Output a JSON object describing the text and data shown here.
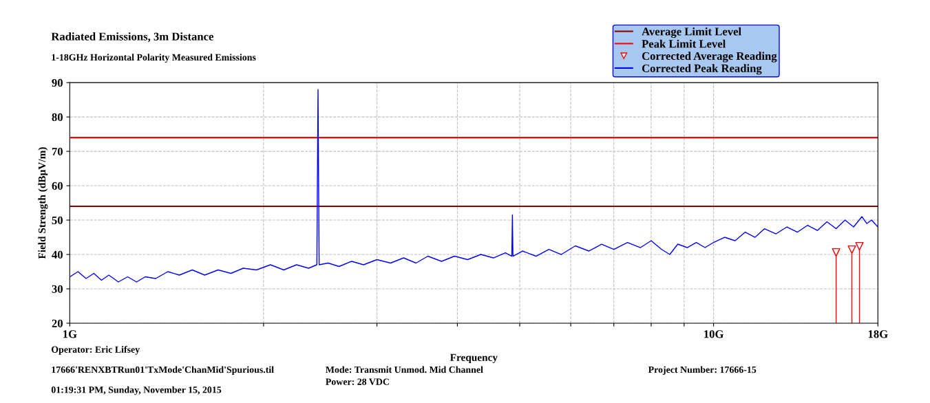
{
  "chart_data": {
    "type": "line",
    "title": "Radiated Emissions, 3m Distance",
    "subtitle": "1-18GHz Horizontal Polarity Measured Emissions",
    "xlabel": "Frequency",
    "ylabel": "Field Strength (dBµV/m)",
    "log": "x",
    "xlim": [
      1,
      18
    ],
    "xticks": [
      {
        "value": 1,
        "label": "1G"
      },
      {
        "value": 2,
        "label": null
      },
      {
        "value": 3,
        "label": null
      },
      {
        "value": 4,
        "label": null
      },
      {
        "value": 5,
        "label": null
      },
      {
        "value": 6,
        "label": null
      },
      {
        "value": 7,
        "label": null
      },
      {
        "value": 8,
        "label": null
      },
      {
        "value": 9,
        "label": null
      },
      {
        "value": 10,
        "label": "10G"
      },
      {
        "value": 18,
        "label": "18G"
      }
    ],
    "ylim": [
      20,
      90
    ],
    "yticks": [
      20,
      30,
      40,
      50,
      60,
      70,
      80,
      90
    ],
    "grid": true,
    "legend": "top right",
    "ref_lines": [
      {
        "axis": "y",
        "value": 54,
        "label": "Average Limit Level",
        "color": "#8b0000"
      },
      {
        "axis": "y",
        "value": 74,
        "label": "Peak Limit Level",
        "color": "#ff0000"
      }
    ],
    "series": [
      {
        "name": "Corrected Average Reading",
        "type": "lollipop",
        "marker": "triangle",
        "color": "#ff0000",
        "x": [
          15.5,
          16.4,
          16.85
        ],
        "values": [
          40.6,
          41.4,
          42.4
        ]
      },
      {
        "name": "Corrected Peak Reading",
        "marker": "none",
        "color": "#0000ff",
        "x": [
          1.0,
          1.03,
          1.06,
          1.09,
          1.12,
          1.15,
          1.19,
          1.23,
          1.27,
          1.31,
          1.36,
          1.42,
          1.48,
          1.55,
          1.62,
          1.7,
          1.78,
          1.86,
          1.95,
          2.05,
          2.15,
          2.25,
          2.35,
          2.42,
          2.43,
          2.44,
          2.52,
          2.62,
          2.74,
          2.86,
          3.0,
          3.15,
          3.3,
          3.45,
          3.6,
          3.78,
          3.96,
          4.15,
          4.35,
          4.55,
          4.75,
          4.86,
          4.87,
          4.88,
          5.05,
          5.3,
          5.55,
          5.8,
          6.1,
          6.4,
          6.7,
          7.0,
          7.35,
          7.7,
          8.0,
          8.3,
          8.55,
          8.8,
          9.1,
          9.4,
          9.7,
          10.0,
          10.4,
          10.8,
          11.2,
          11.6,
          12.0,
          12.5,
          13.0,
          13.5,
          14.0,
          14.5,
          15.0,
          15.5,
          16.0,
          16.5,
          17.0,
          17.3,
          17.6,
          18.0
        ],
        "values": [
          33.5,
          35,
          33,
          34.5,
          32.5,
          34,
          32,
          33.5,
          32,
          33.5,
          33,
          35,
          34,
          35.5,
          34,
          35.5,
          34.5,
          36,
          35.5,
          37,
          35.5,
          37,
          36,
          37,
          88,
          37,
          37.5,
          36.5,
          38,
          37,
          38.5,
          37.5,
          39,
          37.5,
          39.5,
          38,
          39.5,
          38.5,
          40,
          39,
          40.5,
          39.5,
          51.5,
          39.5,
          41,
          39.5,
          41.5,
          40,
          42.5,
          41,
          43,
          41.5,
          43.5,
          42,
          44,
          41.5,
          40,
          43,
          42,
          43.5,
          42,
          43.5,
          45,
          44,
          46.5,
          45,
          47.5,
          46,
          48,
          46.5,
          48.5,
          47,
          49.5,
          47.5,
          50,
          48,
          51,
          49,
          50,
          48
        ]
      }
    ],
    "annotations": [
      "Operator: Eric Lifsey",
      "17666'RENXBTRun01'TxMode'ChanMid'Spurious.til",
      "01:19:31 PM, Sunday, November 15, 2015",
      "Mode: Transmit Unmod. Mid Channel",
      "Power: 28 VDC",
      "Project Number: 17666-15"
    ]
  }
}
